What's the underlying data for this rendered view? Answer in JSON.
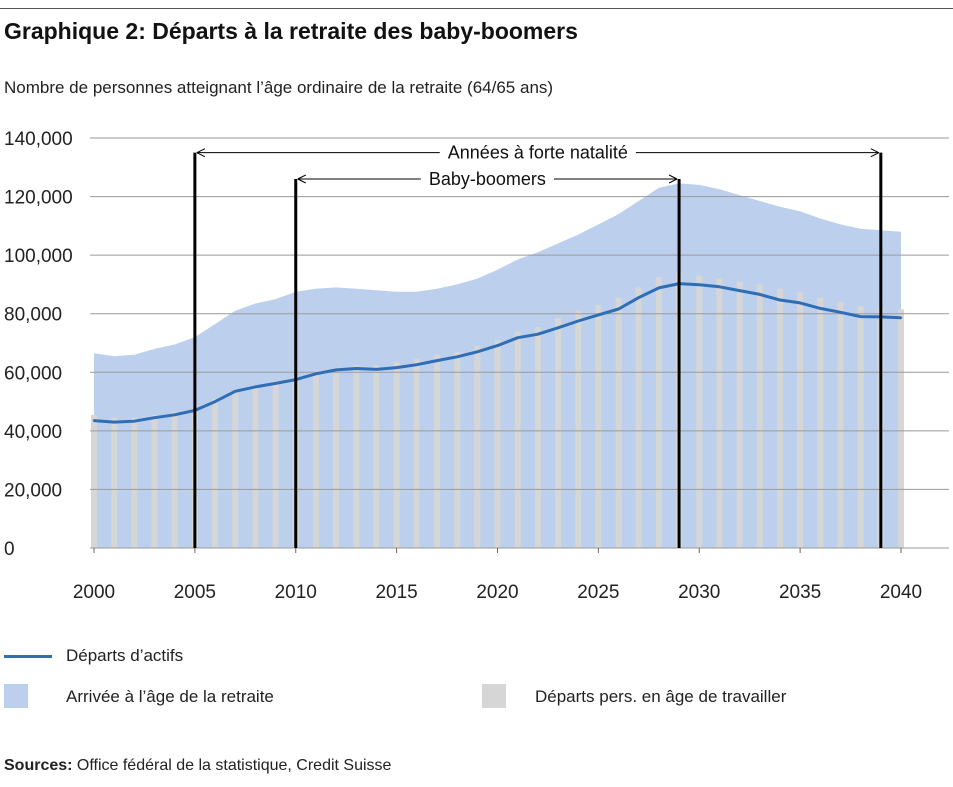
{
  "title": "Graphique 2: Départs à la retraite des baby-boomers",
  "subtitle": "Nombre de personnes atteignant l’âge ordinaire de la retraite (64/65 ans)",
  "colors": {
    "area": "#bcd0ee",
    "bars": "#d6d6d6",
    "line": "#2f6db5",
    "grid": "#9a9a9a",
    "annotation": "#000000"
  },
  "legend": {
    "line_label": "Départs d’actifs",
    "area_label": "Arrivée à l’âge de la retraite",
    "bar_label": "Départs pers. en âge de travailler"
  },
  "source": {
    "label": "Sources:",
    "text": " Office fédéral de la statistique, Credit Suisse"
  },
  "chart_data": {
    "type": "bar",
    "title": "Graphique 2: Départs à la retraite des baby-boomers",
    "subtitle": "Nombre de personnes atteignant l’âge ordinaire de la retraite (64/65 ans)",
    "ylim": [
      0,
      140000
    ],
    "yticks": [
      0,
      20000,
      40000,
      60000,
      80000,
      100000,
      120000,
      140000
    ],
    "ytick_labels": [
      "0",
      "20,000",
      "40,000",
      "60,000",
      "80,000",
      "100,000",
      "120,000",
      "140,000"
    ],
    "xlim": [
      2000,
      2040
    ],
    "xticks": [
      2000,
      2005,
      2010,
      2015,
      2020,
      2025,
      2030,
      2035,
      2040
    ],
    "xtick_labels": [
      "2000",
      "2005",
      "2010",
      "2015",
      "2020",
      "2025",
      "2030",
      "2035",
      "2040"
    ],
    "grid": true,
    "legend_position": "bottom",
    "x": [
      2000,
      2001,
      2002,
      2003,
      2004,
      2005,
      2006,
      2007,
      2008,
      2009,
      2010,
      2011,
      2012,
      2013,
      2014,
      2015,
      2016,
      2017,
      2018,
      2019,
      2020,
      2021,
      2022,
      2023,
      2024,
      2025,
      2026,
      2027,
      2028,
      2029,
      2030,
      2031,
      2032,
      2033,
      2034,
      2035,
      2036,
      2037,
      2038,
      2039,
      2040
    ],
    "series": [
      {
        "name": "Arrivée à l’âge de la retraite",
        "kind": "area",
        "values": [
          66500,
          65500,
          66000,
          68000,
          69500,
          72000,
          76500,
          81000,
          83500,
          85000,
          87500,
          88500,
          89000,
          88500,
          88000,
          87500,
          87500,
          88500,
          90000,
          92000,
          95000,
          98500,
          101000,
          104000,
          107000,
          110500,
          114000,
          118500,
          123000,
          124500,
          124000,
          122500,
          120500,
          118500,
          116500,
          115000,
          112500,
          110500,
          109000,
          108500,
          108000
        ]
      },
      {
        "name": "Départs pers. en âge de travailler",
        "kind": "bar",
        "values": [
          45500,
          44500,
          44500,
          45500,
          46500,
          48000,
          51000,
          53500,
          55500,
          57000,
          58500,
          60500,
          61500,
          62500,
          62500,
          63500,
          64500,
          66000,
          67000,
          69000,
          71000,
          74000,
          75500,
          78500,
          81000,
          83000,
          85500,
          89000,
          92500,
          94000,
          93000,
          92000,
          91000,
          90000,
          88500,
          87500,
          85500,
          84000,
          82500,
          82000,
          81500
        ]
      },
      {
        "name": "Départs d’actifs",
        "kind": "line",
        "values": [
          43500,
          43000,
          43300,
          44500,
          45500,
          47000,
          50000,
          53500,
          55000,
          56200,
          57500,
          59500,
          60800,
          61300,
          61000,
          61600,
          62600,
          64000,
          65300,
          67000,
          69100,
          71800,
          73000,
          75200,
          77500,
          79600,
          81600,
          85500,
          88800,
          90300,
          89900,
          89200,
          87900,
          86600,
          84700,
          83700,
          81800,
          80500,
          79000,
          78900,
          78600
        ]
      }
    ],
    "annotations": [
      {
        "label": "Années à forte natalité",
        "x_start": 2005,
        "x_end": 2039,
        "y": 135000
      },
      {
        "label": "Baby-boomers",
        "x_start": 2010,
        "x_end": 2029,
        "y": 126000
      }
    ]
  }
}
